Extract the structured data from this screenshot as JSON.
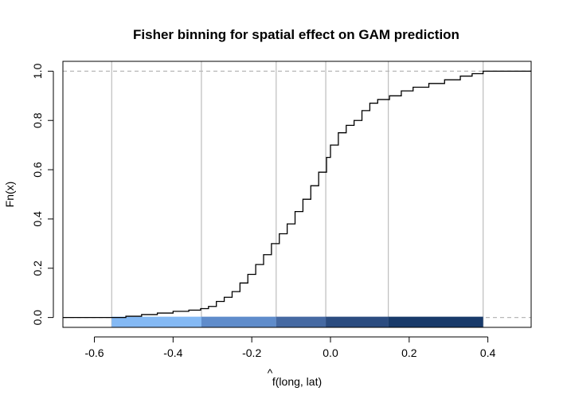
{
  "chart_data": {
    "type": "line",
    "subtype": "ecdf",
    "title": "Fisher binning for spatial effect on GAM prediction",
    "xlabel_hat": "^",
    "xlabel": "f(long, lat)",
    "ylabel": "Fn(x)",
    "xlim": [
      -0.68,
      0.51
    ],
    "ylim": [
      -0.04,
      1.04
    ],
    "x_ticks": [
      -0.6,
      -0.4,
      -0.2,
      0.0,
      0.2,
      0.4
    ],
    "x_tick_labels": [
      "-0.6",
      "-0.4",
      "-0.2",
      "0.0",
      "0.2",
      "0.4"
    ],
    "y_ticks": [
      0.0,
      0.2,
      0.4,
      0.6,
      0.8,
      1.0
    ],
    "y_tick_labels": [
      "0.0",
      "0.2",
      "0.4",
      "0.6",
      "0.8",
      "1.0"
    ],
    "horizontal_reference_lines": [
      0,
      1
    ],
    "bin_breaks": [
      -0.556,
      -0.328,
      -0.138,
      -0.012,
      0.147,
      0.388
    ],
    "bin_colors": [
      "#84b9f4",
      "#5f8ccb",
      "#4569a2",
      "#2b4c80",
      "#183a6a",
      "#04224e"
    ],
    "ecdf": {
      "x": [
        -0.556,
        -0.52,
        -0.48,
        -0.44,
        -0.4,
        -0.36,
        -0.33,
        -0.31,
        -0.29,
        -0.27,
        -0.25,
        -0.23,
        -0.21,
        -0.19,
        -0.17,
        -0.15,
        -0.13,
        -0.11,
        -0.09,
        -0.07,
        -0.05,
        -0.03,
        -0.01,
        0.0,
        0.02,
        0.04,
        0.06,
        0.08,
        0.1,
        0.12,
        0.15,
        0.18,
        0.21,
        0.25,
        0.29,
        0.33,
        0.36,
        0.388
      ],
      "y": [
        0.0,
        0.005,
        0.012,
        0.018,
        0.025,
        0.03,
        0.036,
        0.045,
        0.065,
        0.082,
        0.105,
        0.14,
        0.175,
        0.215,
        0.255,
        0.3,
        0.34,
        0.38,
        0.43,
        0.48,
        0.535,
        0.59,
        0.65,
        0.7,
        0.75,
        0.78,
        0.8,
        0.84,
        0.87,
        0.885,
        0.9,
        0.92,
        0.935,
        0.95,
        0.965,
        0.98,
        0.99,
        1.0
      ]
    }
  }
}
